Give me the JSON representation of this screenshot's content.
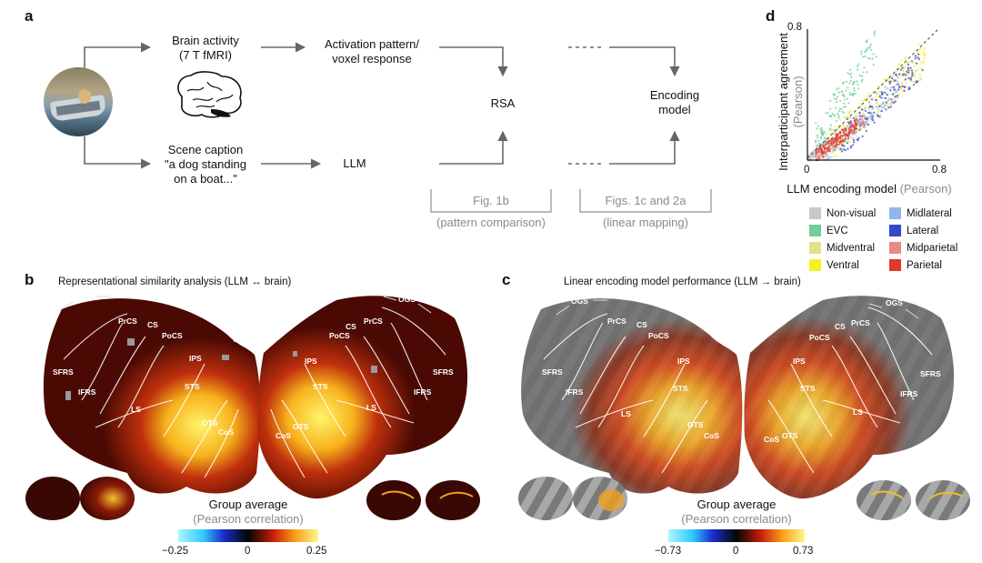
{
  "panels": {
    "a": "a",
    "b": "b",
    "c": "c",
    "d": "d"
  },
  "panel_a": {
    "brain_activity": "Brain activity",
    "brain_activity_sub": "(7 T fMRI)",
    "activation_1": "Activation pattern/",
    "activation_2": "voxel response",
    "scene_caption": "Scene caption",
    "caption_1": "\"a dog standing",
    "caption_2": "on a boat...\"",
    "llm": "LLM",
    "rsa": "RSA",
    "encoding_1": "Encoding",
    "encoding_2": "model",
    "fig1b": "Fig. 1b",
    "pattern_comparison": "(pattern comparison)",
    "figs1c2a": "Figs. 1c and 2a",
    "linear_mapping": "(linear mapping)"
  },
  "panel_b": {
    "title": "Representational similarity analysis  (LLM ↔ brain)",
    "cb_title": "Group average",
    "cb_sub": "(Pearson correlation)",
    "ticks": [
      "−0.25",
      "0",
      "0.25"
    ]
  },
  "panel_c": {
    "title": "Linear encoding model performance (LLM → brain)",
    "cb_title": "Group average",
    "cb_sub": "(Pearson correlation)",
    "ticks": [
      "−0.73",
      "0",
      "0.73"
    ]
  },
  "roi_labels": [
    "OGS",
    "PrCS",
    "CS",
    "PoCS",
    "SFRS",
    "IFRS",
    "IPS",
    "STS",
    "LS",
    "OTS",
    "CoS",
    "Calc"
  ],
  "chart_data": {
    "type": "scatter",
    "title": "",
    "ylabel": "Interparticipant agreement",
    "ylabel_unit": "(Pearson)",
    "xlabel": "LLM encoding model",
    "xlabel_unit": "(Pearson)",
    "xlim": [
      0,
      0.8
    ],
    "ylim": [
      0,
      0.8
    ],
    "x_ticks": [
      "0",
      "0.8"
    ],
    "y_ticks": [
      "0.8"
    ],
    "diagonal": true,
    "legend_placement": "bottom",
    "series": [
      {
        "name": "Non-visual",
        "color": "#c8c8c8",
        "x_range": [
          0.0,
          0.12
        ],
        "y_range": [
          0.0,
          0.12
        ]
      },
      {
        "name": "EVC",
        "color": "#6fcf97",
        "x_range": [
          0.05,
          0.42
        ],
        "y_range": [
          0.12,
          0.72
        ]
      },
      {
        "name": "Midventral",
        "color": "#e6e08a",
        "x_range": [
          0.08,
          0.7
        ],
        "y_range": [
          0.05,
          0.6
        ]
      },
      {
        "name": "Ventral",
        "color": "#f5f020",
        "x_range": [
          0.15,
          0.72
        ],
        "y_range": [
          0.1,
          0.66
        ]
      },
      {
        "name": "Midlateral",
        "color": "#8fb8e8",
        "x_range": [
          0.1,
          0.55
        ],
        "y_range": [
          0.05,
          0.45
        ]
      },
      {
        "name": "Lateral",
        "color": "#3447c8",
        "x_range": [
          0.2,
          0.7
        ],
        "y_range": [
          0.1,
          0.6
        ]
      },
      {
        "name": "Midparietal",
        "color": "#e68a8a",
        "x_range": [
          0.05,
          0.35
        ],
        "y_range": [
          0.02,
          0.25
        ]
      },
      {
        "name": "Parietal",
        "color": "#e03a2a",
        "x_range": [
          0.05,
          0.3
        ],
        "y_range": [
          0.02,
          0.22
        ]
      }
    ]
  }
}
